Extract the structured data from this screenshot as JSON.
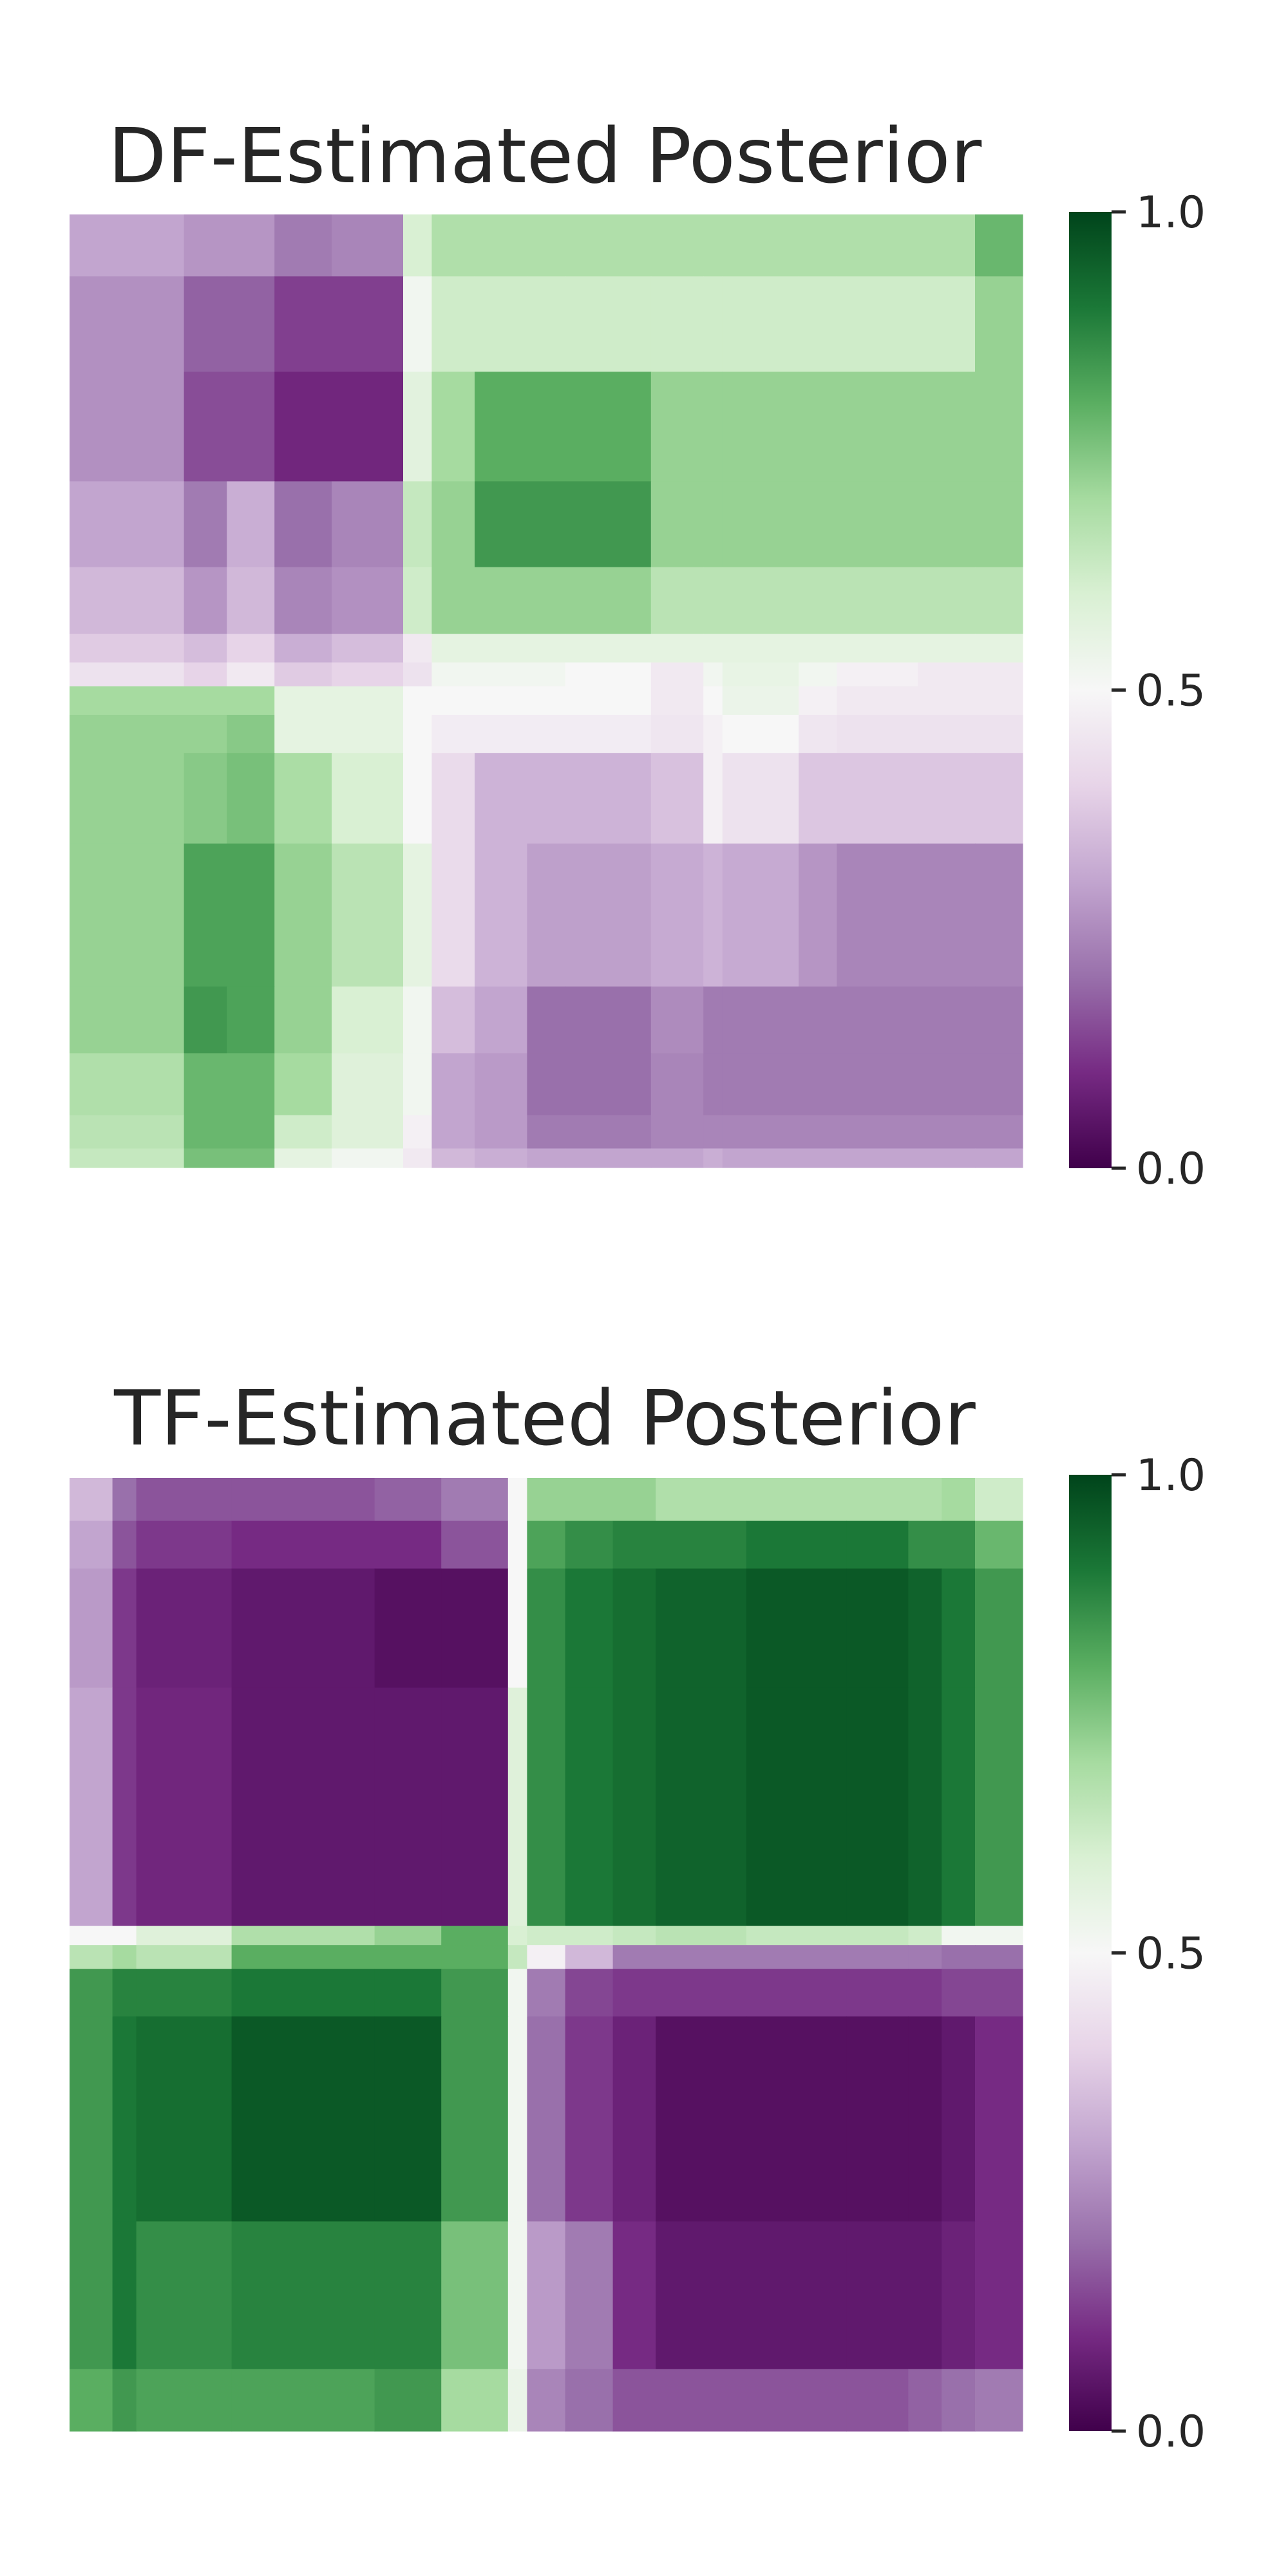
{
  "chart_data": [
    {
      "type": "heatmap",
      "title": "DF-Estimated Posterior",
      "colormap": "PRGn",
      "vmin": 0.0,
      "vmax": 1.0,
      "colorbar": {
        "ticks": [
          0.0,
          0.5,
          1.0
        ],
        "tick_labels": [
          "0.0",
          "0.5",
          "1.0"
        ]
      },
      "grid": false,
      "x_edges": [
        0,
        2.4,
        3.3,
        4.3,
        5.5,
        7.0,
        7.6,
        8.5,
        9.6,
        10.4,
        12.2,
        13.3,
        13.7,
        15.3,
        16.1,
        17.8,
        19.0,
        20.0
      ],
      "y_edges": [
        0,
        1.3,
        3.3,
        5.6,
        7.4,
        8.8,
        9.4,
        9.9,
        10.5,
        11.3,
        13.2,
        16.2,
        17.6,
        18.9,
        19.6,
        20.0
      ],
      "values": [
        [
          0.3,
          0.27,
          0.27,
          0.22,
          0.24,
          0.6,
          0.68,
          0.68,
          0.68,
          0.68,
          0.68,
          0.68,
          0.68,
          0.68,
          0.68,
          0.68,
          0.78
        ],
        [
          0.26,
          0.18,
          0.18,
          0.13,
          0.13,
          0.52,
          0.62,
          0.62,
          0.62,
          0.62,
          0.62,
          0.62,
          0.62,
          0.62,
          0.62,
          0.62,
          0.72
        ],
        [
          0.26,
          0.15,
          0.15,
          0.09,
          0.09,
          0.57,
          0.7,
          0.8,
          0.8,
          0.8,
          0.72,
          0.72,
          0.72,
          0.72,
          0.72,
          0.72,
          0.72
        ],
        [
          0.3,
          0.22,
          0.32,
          0.2,
          0.24,
          0.64,
          0.72,
          0.84,
          0.84,
          0.84,
          0.72,
          0.72,
          0.72,
          0.72,
          0.72,
          0.72,
          0.72
        ],
        [
          0.34,
          0.27,
          0.34,
          0.24,
          0.26,
          0.62,
          0.72,
          0.72,
          0.72,
          0.72,
          0.66,
          0.66,
          0.66,
          0.66,
          0.66,
          0.66,
          0.66
        ],
        [
          0.38,
          0.35,
          0.4,
          0.32,
          0.35,
          0.46,
          0.56,
          0.56,
          0.56,
          0.56,
          0.56,
          0.56,
          0.56,
          0.56,
          0.56,
          0.56,
          0.56
        ],
        [
          0.44,
          0.4,
          0.46,
          0.38,
          0.4,
          0.44,
          0.52,
          0.52,
          0.52,
          0.5,
          0.46,
          0.52,
          0.55,
          0.52,
          0.48,
          0.46,
          0.46
        ],
        [
          0.7,
          0.7,
          0.7,
          0.56,
          0.56,
          0.5,
          0.5,
          0.5,
          0.5,
          0.5,
          0.46,
          0.5,
          0.54,
          0.48,
          0.46,
          0.46,
          0.46
        ],
        [
          0.72,
          0.72,
          0.74,
          0.56,
          0.56,
          0.5,
          0.47,
          0.47,
          0.47,
          0.47,
          0.45,
          0.48,
          0.5,
          0.45,
          0.44,
          0.44,
          0.44
        ],
        [
          0.72,
          0.74,
          0.76,
          0.69,
          0.6,
          0.5,
          0.42,
          0.33,
          0.33,
          0.33,
          0.36,
          0.48,
          0.44,
          0.37,
          0.37,
          0.37,
          0.37
        ],
        [
          0.72,
          0.82,
          0.82,
          0.72,
          0.66,
          0.56,
          0.42,
          0.33,
          0.29,
          0.29,
          0.31,
          0.33,
          0.31,
          0.27,
          0.24,
          0.24,
          0.24
        ],
        [
          0.72,
          0.84,
          0.82,
          0.72,
          0.6,
          0.52,
          0.35,
          0.3,
          0.2,
          0.2,
          0.25,
          0.22,
          0.22,
          0.22,
          0.22,
          0.22,
          0.22
        ],
        [
          0.68,
          0.78,
          0.78,
          0.7,
          0.58,
          0.52,
          0.3,
          0.28,
          0.2,
          0.2,
          0.24,
          0.22,
          0.22,
          0.22,
          0.22,
          0.22,
          0.22
        ],
        [
          0.66,
          0.78,
          0.78,
          0.62,
          0.58,
          0.48,
          0.3,
          0.28,
          0.22,
          0.22,
          0.24,
          0.24,
          0.24,
          0.24,
          0.24,
          0.24,
          0.24
        ],
        [
          0.64,
          0.76,
          0.76,
          0.56,
          0.52,
          0.46,
          0.34,
          0.32,
          0.3,
          0.3,
          0.3,
          0.32,
          0.3,
          0.3,
          0.3,
          0.3,
          0.3
        ]
      ]
    },
    {
      "type": "heatmap",
      "title": "TF-Estimated Posterior",
      "colormap": "PRGn",
      "vmin": 0.0,
      "vmax": 1.0,
      "colorbar": {
        "ticks": [
          0.0,
          0.5,
          1.0
        ],
        "tick_labels": [
          "0.0",
          "0.5",
          "1.0"
        ]
      },
      "grid": false,
      "x_edges": [
        0,
        0.9,
        1.4,
        3.4,
        6.4,
        7.8,
        9.2,
        9.6,
        10.4,
        11.4,
        12.3,
        14.2,
        16.3,
        17.6,
        18.3,
        19.0,
        20.0
      ],
      "y_edges": [
        0,
        0.9,
        1.9,
        4.4,
        9.4,
        9.8,
        10.3,
        11.3,
        15.6,
        18.7,
        20.0
      ],
      "values": [
        [
          0.34,
          0.2,
          0.16,
          0.16,
          0.18,
          0.22,
          0.5,
          0.72,
          0.72,
          0.72,
          0.68,
          0.68,
          0.68,
          0.68,
          0.7,
          0.62
        ],
        [
          0.3,
          0.16,
          0.12,
          0.1,
          0.1,
          0.16,
          0.5,
          0.82,
          0.86,
          0.88,
          0.88,
          0.9,
          0.9,
          0.86,
          0.86,
          0.78
        ],
        [
          0.28,
          0.12,
          0.08,
          0.06,
          0.04,
          0.04,
          0.5,
          0.86,
          0.9,
          0.92,
          0.94,
          0.96,
          0.96,
          0.94,
          0.9,
          0.84
        ],
        [
          0.3,
          0.12,
          0.09,
          0.06,
          0.06,
          0.06,
          0.58,
          0.86,
          0.9,
          0.92,
          0.94,
          0.96,
          0.96,
          0.94,
          0.9,
          0.84
        ],
        [
          0.5,
          0.5,
          0.58,
          0.68,
          0.72,
          0.8,
          0.6,
          0.62,
          0.62,
          0.64,
          0.66,
          0.64,
          0.64,
          0.62,
          0.52,
          0.52
        ],
        [
          0.66,
          0.7,
          0.66,
          0.8,
          0.8,
          0.8,
          0.64,
          0.48,
          0.34,
          0.22,
          0.22,
          0.22,
          0.22,
          0.22,
          0.2,
          0.2
        ],
        [
          0.84,
          0.88,
          0.88,
          0.9,
          0.9,
          0.84,
          0.52,
          0.22,
          0.14,
          0.12,
          0.12,
          0.12,
          0.12,
          0.12,
          0.14,
          0.14
        ],
        [
          0.84,
          0.9,
          0.92,
          0.96,
          0.96,
          0.84,
          0.52,
          0.2,
          0.12,
          0.08,
          0.04,
          0.04,
          0.04,
          0.04,
          0.06,
          0.1
        ],
        [
          0.84,
          0.9,
          0.86,
          0.88,
          0.88,
          0.76,
          0.52,
          0.28,
          0.22,
          0.1,
          0.06,
          0.06,
          0.06,
          0.06,
          0.08,
          0.1
        ],
        [
          0.8,
          0.84,
          0.82,
          0.82,
          0.84,
          0.7,
          0.54,
          0.24,
          0.2,
          0.16,
          0.16,
          0.16,
          0.16,
          0.18,
          0.2,
          0.22
        ]
      ]
    }
  ]
}
